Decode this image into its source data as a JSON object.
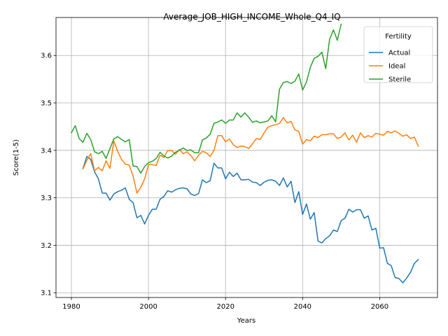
{
  "chart_data": {
    "type": "line",
    "title": "Average_JOB_HIGH_INCOME_Whole_Q4_IQ",
    "xlabel": "Years",
    "ylabel": "Score(1-5)",
    "xlim": [
      1976,
      2075
    ],
    "ylim": [
      3.09,
      3.68
    ],
    "x_ticks": [
      1980,
      2000,
      2020,
      2040,
      2060
    ],
    "y_ticks": [
      3.1,
      3.2,
      3.3,
      3.4,
      3.5,
      3.6
    ],
    "grid": true,
    "legend": {
      "title": "Fertility",
      "position": "top-right"
    },
    "series": [
      {
        "name": "Actual",
        "color": "#1f77b4",
        "x": [
          1983,
          1984,
          1985,
          1986,
          1987,
          1988,
          1989,
          1990,
          1991,
          1992,
          1993,
          1994,
          1995,
          1996,
          1997,
          1998,
          1999,
          2000,
          2001,
          2002,
          2003,
          2004,
          2005,
          2006,
          2007,
          2008,
          2009,
          2010,
          2011,
          2012,
          2013,
          2014,
          2015,
          2016,
          2017,
          2018,
          2019,
          2020,
          2021,
          2022,
          2023,
          2024,
          2025,
          2026,
          2027,
          2028,
          2029,
          2030,
          2031,
          2032,
          2033,
          2034,
          2035,
          2036,
          2037,
          2038,
          2039,
          2040,
          2041,
          2042,
          2043,
          2044,
          2045,
          2046,
          2047,
          2048,
          2049,
          2050,
          2051,
          2052,
          2053,
          2054,
          2055,
          2056,
          2057,
          2058,
          2059,
          2060,
          2061,
          2062,
          2063,
          2064,
          2065,
          2066,
          2067,
          2068,
          2069,
          2070
        ],
        "values": [
          3.362,
          3.387,
          3.381,
          3.355,
          3.34,
          3.31,
          3.31,
          3.295,
          3.308,
          3.313,
          3.316,
          3.321,
          3.297,
          3.29,
          3.258,
          3.263,
          3.245,
          3.263,
          3.276,
          3.276,
          3.297,
          3.303,
          3.315,
          3.312,
          3.317,
          3.32,
          3.321,
          3.319,
          3.308,
          3.305,
          3.309,
          3.338,
          3.332,
          3.336,
          3.373,
          3.363,
          3.363,
          3.34,
          3.354,
          3.345,
          3.352,
          3.338,
          3.338,
          3.339,
          3.333,
          3.332,
          3.326,
          3.333,
          3.337,
          3.338,
          3.335,
          3.326,
          3.342,
          3.323,
          3.335,
          3.29,
          3.313,
          3.265,
          3.287,
          3.255,
          3.269,
          3.209,
          3.205,
          3.214,
          3.22,
          3.232,
          3.229,
          3.252,
          3.257,
          3.276,
          3.27,
          3.275,
          3.275,
          3.257,
          3.262,
          3.232,
          3.236,
          3.194,
          3.195,
          3.162,
          3.157,
          3.132,
          3.13,
          3.121,
          3.131,
          3.143,
          3.162,
          3.17
        ]
      },
      {
        "name": "Ideal",
        "color": "#ff7f0e",
        "x": [
          1983,
          1984,
          1985,
          1986,
          1987,
          1988,
          1989,
          1990,
          1991,
          1992,
          1993,
          1994,
          1995,
          1996,
          1997,
          1998,
          1999,
          2000,
          2001,
          2002,
          2003,
          2004,
          2005,
          2006,
          2007,
          2008,
          2009,
          2010,
          2011,
          2012,
          2013,
          2014,
          2015,
          2016,
          2017,
          2018,
          2019,
          2020,
          2021,
          2022,
          2023,
          2024,
          2025,
          2026,
          2027,
          2028,
          2029,
          2030,
          2031,
          2032,
          2033,
          2034,
          2035,
          2036,
          2037,
          2038,
          2039,
          2040,
          2041,
          2042,
          2043,
          2044,
          2045,
          2046,
          2047,
          2048,
          2049,
          2050,
          2051,
          2052,
          2053,
          2054,
          2055,
          2056,
          2057,
          2058,
          2059,
          2060,
          2061,
          2062,
          2063,
          2064,
          2065,
          2066,
          2067,
          2068,
          2069,
          2070
        ],
        "values": [
          3.361,
          3.379,
          3.393,
          3.357,
          3.364,
          3.357,
          3.378,
          3.362,
          3.42,
          3.398,
          3.381,
          3.371,
          3.369,
          3.346,
          3.31,
          3.322,
          3.34,
          3.37,
          3.37,
          3.368,
          3.39,
          3.385,
          3.4,
          3.4,
          3.392,
          3.402,
          3.393,
          3.397,
          3.389,
          3.378,
          3.39,
          3.398,
          3.395,
          3.387,
          3.4,
          3.431,
          3.431,
          3.418,
          3.424,
          3.412,
          3.406,
          3.409,
          3.408,
          3.404,
          3.414,
          3.425,
          3.423,
          3.437,
          3.449,
          3.452,
          3.454,
          3.457,
          3.469,
          3.458,
          3.461,
          3.443,
          3.44,
          3.413,
          3.423,
          3.42,
          3.43,
          3.427,
          3.433,
          3.433,
          3.435,
          3.435,
          3.425,
          3.428,
          3.437,
          3.422,
          3.432,
          3.417,
          3.437,
          3.427,
          3.431,
          3.428,
          3.436,
          3.434,
          3.432,
          3.44,
          3.437,
          3.441,
          3.436,
          3.43,
          3.433,
          3.425,
          3.428,
          3.409
        ]
      },
      {
        "name": "Sterile",
        "color": "#2ca02c",
        "x": [
          1980,
          1981,
          1982,
          1983,
          1984,
          1985,
          1986,
          1987,
          1988,
          1989,
          1990,
          1991,
          1992,
          1993,
          1994,
          1995,
          1996,
          1997,
          1998,
          1999,
          2000,
          2001,
          2002,
          2003,
          2004,
          2005,
          2006,
          2007,
          2008,
          2009,
          2010,
          2011,
          2012,
          2013,
          2014,
          2015,
          2016,
          2017,
          2018,
          2019,
          2020,
          2021,
          2022,
          2023,
          2024,
          2025,
          2026,
          2027,
          2028,
          2029,
          2030,
          2031,
          2032,
          2033,
          2034,
          2035,
          2036,
          2037,
          2038,
          2039,
          2040,
          2041,
          2042,
          2043,
          2044,
          2045,
          2046,
          2047,
          2048,
          2049,
          2050
        ],
        "values": [
          3.437,
          3.452,
          3.425,
          3.417,
          3.436,
          3.423,
          3.397,
          3.393,
          3.398,
          3.383,
          3.404,
          3.424,
          3.429,
          3.423,
          3.418,
          3.423,
          3.367,
          3.366,
          3.352,
          3.366,
          3.374,
          3.377,
          3.383,
          3.396,
          3.388,
          3.384,
          3.388,
          3.396,
          3.4,
          3.405,
          3.4,
          3.401,
          3.395,
          3.395,
          3.422,
          3.426,
          3.434,
          3.457,
          3.46,
          3.464,
          3.457,
          3.464,
          3.464,
          3.479,
          3.47,
          3.479,
          3.47,
          3.459,
          3.462,
          3.458,
          3.46,
          3.462,
          3.473,
          3.46,
          3.529,
          3.543,
          3.545,
          3.541,
          3.546,
          3.561,
          3.527,
          3.544,
          3.575,
          3.594,
          3.598,
          3.607,
          3.572,
          3.634,
          3.654,
          3.632,
          3.666
        ]
      }
    ]
  }
}
